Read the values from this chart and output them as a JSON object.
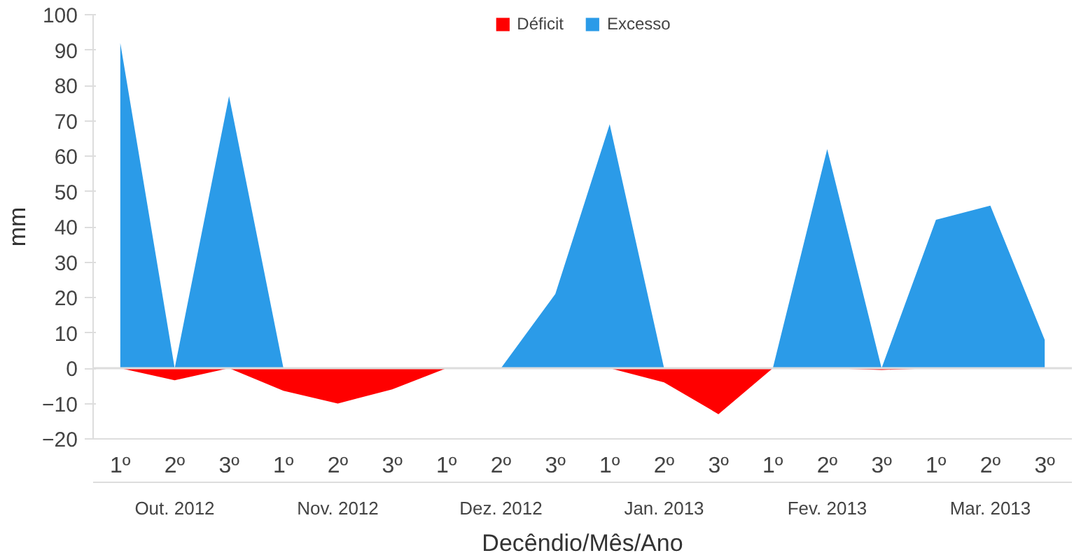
{
  "chart_data": {
    "type": "area",
    "categories": [
      "1º",
      "2º",
      "3º",
      "1º",
      "2º",
      "3º",
      "1º",
      "2º",
      "3º",
      "1º",
      "2º",
      "3º",
      "1º",
      "2º",
      "3º",
      "1º",
      "2º",
      "3º"
    ],
    "annotations": [
      "Out. 2012",
      "Nov. 2012",
      "Dez. 2012",
      "Jan. 2013",
      "Fev. 2013",
      "Mar. 2013"
    ],
    "series": [
      {
        "name": "Déficit",
        "color": "#ff0000",
        "values": [
          0,
          -3.4,
          0,
          -6.4,
          -10,
          -6,
          0,
          0,
          0,
          0,
          -4,
          -13,
          0,
          0,
          -0.5,
          0,
          0,
          0
        ]
      },
      {
        "name": "Excesso",
        "color": "#2b9be8",
        "values": [
          92,
          0,
          77,
          0,
          0,
          0,
          0,
          0,
          21,
          69,
          0,
          0,
          0,
          62,
          0,
          42,
          46,
          8
        ]
      }
    ],
    "xlabel": "Decêndio/Mês/Ano",
    "ylabel": "mm",
    "ylim": [
      -20,
      100
    ],
    "yticks": [
      -20,
      -10,
      0,
      10,
      20,
      30,
      40,
      50,
      60,
      70,
      80,
      90,
      100
    ],
    "ref_lines": [
      {
        "axis": "y",
        "value": 0,
        "color": "#dddddd"
      }
    ],
    "grid": false,
    "legend": "top"
  }
}
